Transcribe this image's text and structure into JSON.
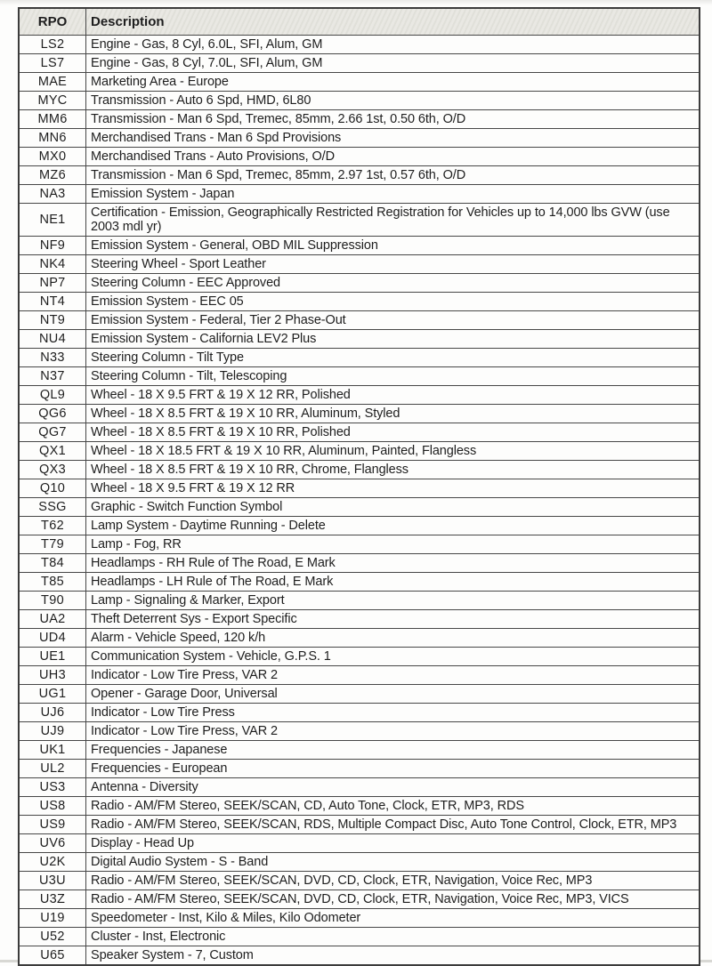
{
  "table": {
    "columns": [
      "RPO",
      "Description"
    ],
    "rows": [
      {
        "rpo": "LS2",
        "description": "Engine - Gas, 8 Cyl, 6.0L, SFI, Alum, GM"
      },
      {
        "rpo": "LS7",
        "description": "Engine - Gas, 8 Cyl, 7.0L, SFI, Alum, GM"
      },
      {
        "rpo": "MAE",
        "description": "Marketing Area - Europe"
      },
      {
        "rpo": "MYC",
        "description": "Transmission - Auto 6 Spd, HMD, 6L80"
      },
      {
        "rpo": "MM6",
        "description": "Transmission - Man 6 Spd, Tremec, 85mm, 2.66 1st, 0.50 6th, O/D"
      },
      {
        "rpo": "MN6",
        "description": "Merchandised Trans - Man 6 Spd Provisions"
      },
      {
        "rpo": "MX0",
        "description": "Merchandised Trans - Auto Provisions, O/D"
      },
      {
        "rpo": "MZ6",
        "description": "Transmission - Man 6 Spd, Tremec, 85mm, 2.97 1st, 0.57 6th, O/D"
      },
      {
        "rpo": "NA3",
        "description": "Emission System - Japan"
      },
      {
        "rpo": "NE1",
        "description": "Certification - Emission, Geographically Restricted Registration for Vehicles up to 14,000 lbs GVW (use 2003 mdl yr)"
      },
      {
        "rpo": "NF9",
        "description": "Emission System - General, OBD MIL Suppression"
      },
      {
        "rpo": "NK4",
        "description": "Steering Wheel - Sport Leather"
      },
      {
        "rpo": "NP7",
        "description": "Steering Column - EEC Approved"
      },
      {
        "rpo": "NT4",
        "description": "Emission System - EEC 05"
      },
      {
        "rpo": "NT9",
        "description": "Emission System - Federal, Tier 2 Phase-Out"
      },
      {
        "rpo": "NU4",
        "description": "Emission System - California LEV2 Plus"
      },
      {
        "rpo": "N33",
        "description": "Steering Column - Tilt Type"
      },
      {
        "rpo": "N37",
        "description": "Steering Column - Tilt, Telescoping"
      },
      {
        "rpo": "QL9",
        "description": "Wheel - 18 X 9.5 FRT & 19 X 12 RR, Polished"
      },
      {
        "rpo": "QG6",
        "description": "Wheel - 18 X 8.5 FRT & 19 X 10 RR, Aluminum, Styled"
      },
      {
        "rpo": "QG7",
        "description": "Wheel - 18 X 8.5 FRT & 19 X 10 RR, Polished"
      },
      {
        "rpo": "QX1",
        "description": "Wheel - 18 X 18.5 FRT & 19 X 10 RR, Aluminum, Painted, Flangless"
      },
      {
        "rpo": "QX3",
        "description": "Wheel - 18 X 8.5 FRT & 19 X 10 RR, Chrome, Flangless"
      },
      {
        "rpo": "Q10",
        "description": "Wheel - 18 X 9.5 FRT & 19 X 12 RR"
      },
      {
        "rpo": "SSG",
        "description": "Graphic - Switch Function Symbol"
      },
      {
        "rpo": "T62",
        "description": "Lamp System - Daytime Running - Delete"
      },
      {
        "rpo": "T79",
        "description": "Lamp - Fog, RR"
      },
      {
        "rpo": "T84",
        "description": "Headlamps - RH Rule of The Road, E Mark"
      },
      {
        "rpo": "T85",
        "description": "Headlamps - LH Rule of The Road, E Mark"
      },
      {
        "rpo": "T90",
        "description": "Lamp - Signaling & Marker, Export"
      },
      {
        "rpo": "UA2",
        "description": "Theft Deterrent Sys - Export Specific"
      },
      {
        "rpo": "UD4",
        "description": "Alarm - Vehicle Speed, 120 k/h"
      },
      {
        "rpo": "UE1",
        "description": "Communication System - Vehicle, G.P.S. 1"
      },
      {
        "rpo": "UH3",
        "description": "Indicator - Low Tire Press, VAR 2"
      },
      {
        "rpo": "UG1",
        "description": "Opener - Garage Door, Universal"
      },
      {
        "rpo": "UJ6",
        "description": "Indicator - Low Tire Press"
      },
      {
        "rpo": "UJ9",
        "description": "Indicator - Low Tire Press, VAR 2"
      },
      {
        "rpo": "UK1",
        "description": "Frequencies - Japanese"
      },
      {
        "rpo": "UL2",
        "description": "Frequencies - European"
      },
      {
        "rpo": "US3",
        "description": "Antenna - Diversity"
      },
      {
        "rpo": "US8",
        "description": "Radio - AM/FM Stereo, SEEK/SCAN, CD, Auto Tone, Clock, ETR, MP3, RDS"
      },
      {
        "rpo": "US9",
        "description": "Radio - AM/FM Stereo, SEEK/SCAN, RDS, Multiple Compact Disc, Auto Tone Control, Clock, ETR, MP3"
      },
      {
        "rpo": "UV6",
        "description": "Display - Head Up"
      },
      {
        "rpo": "U2K",
        "description": "Digital Audio System - S - Band"
      },
      {
        "rpo": "U3U",
        "description": "Radio - AM/FM Stereo, SEEK/SCAN, DVD, CD, Clock, ETR, Navigation, Voice Rec, MP3"
      },
      {
        "rpo": "U3Z",
        "description": "Radio - AM/FM Stereo, SEEK/SCAN, DVD, CD, Clock, ETR, Navigation, Voice Rec, MP3, VICS"
      },
      {
        "rpo": "U19",
        "description": "Speedometer - Inst, Kilo & Miles, Kilo Odometer"
      },
      {
        "rpo": "U52",
        "description": "Cluster - Inst, Electronic"
      },
      {
        "rpo": "U65",
        "description": "Speaker System - 7, Custom"
      }
    ]
  }
}
